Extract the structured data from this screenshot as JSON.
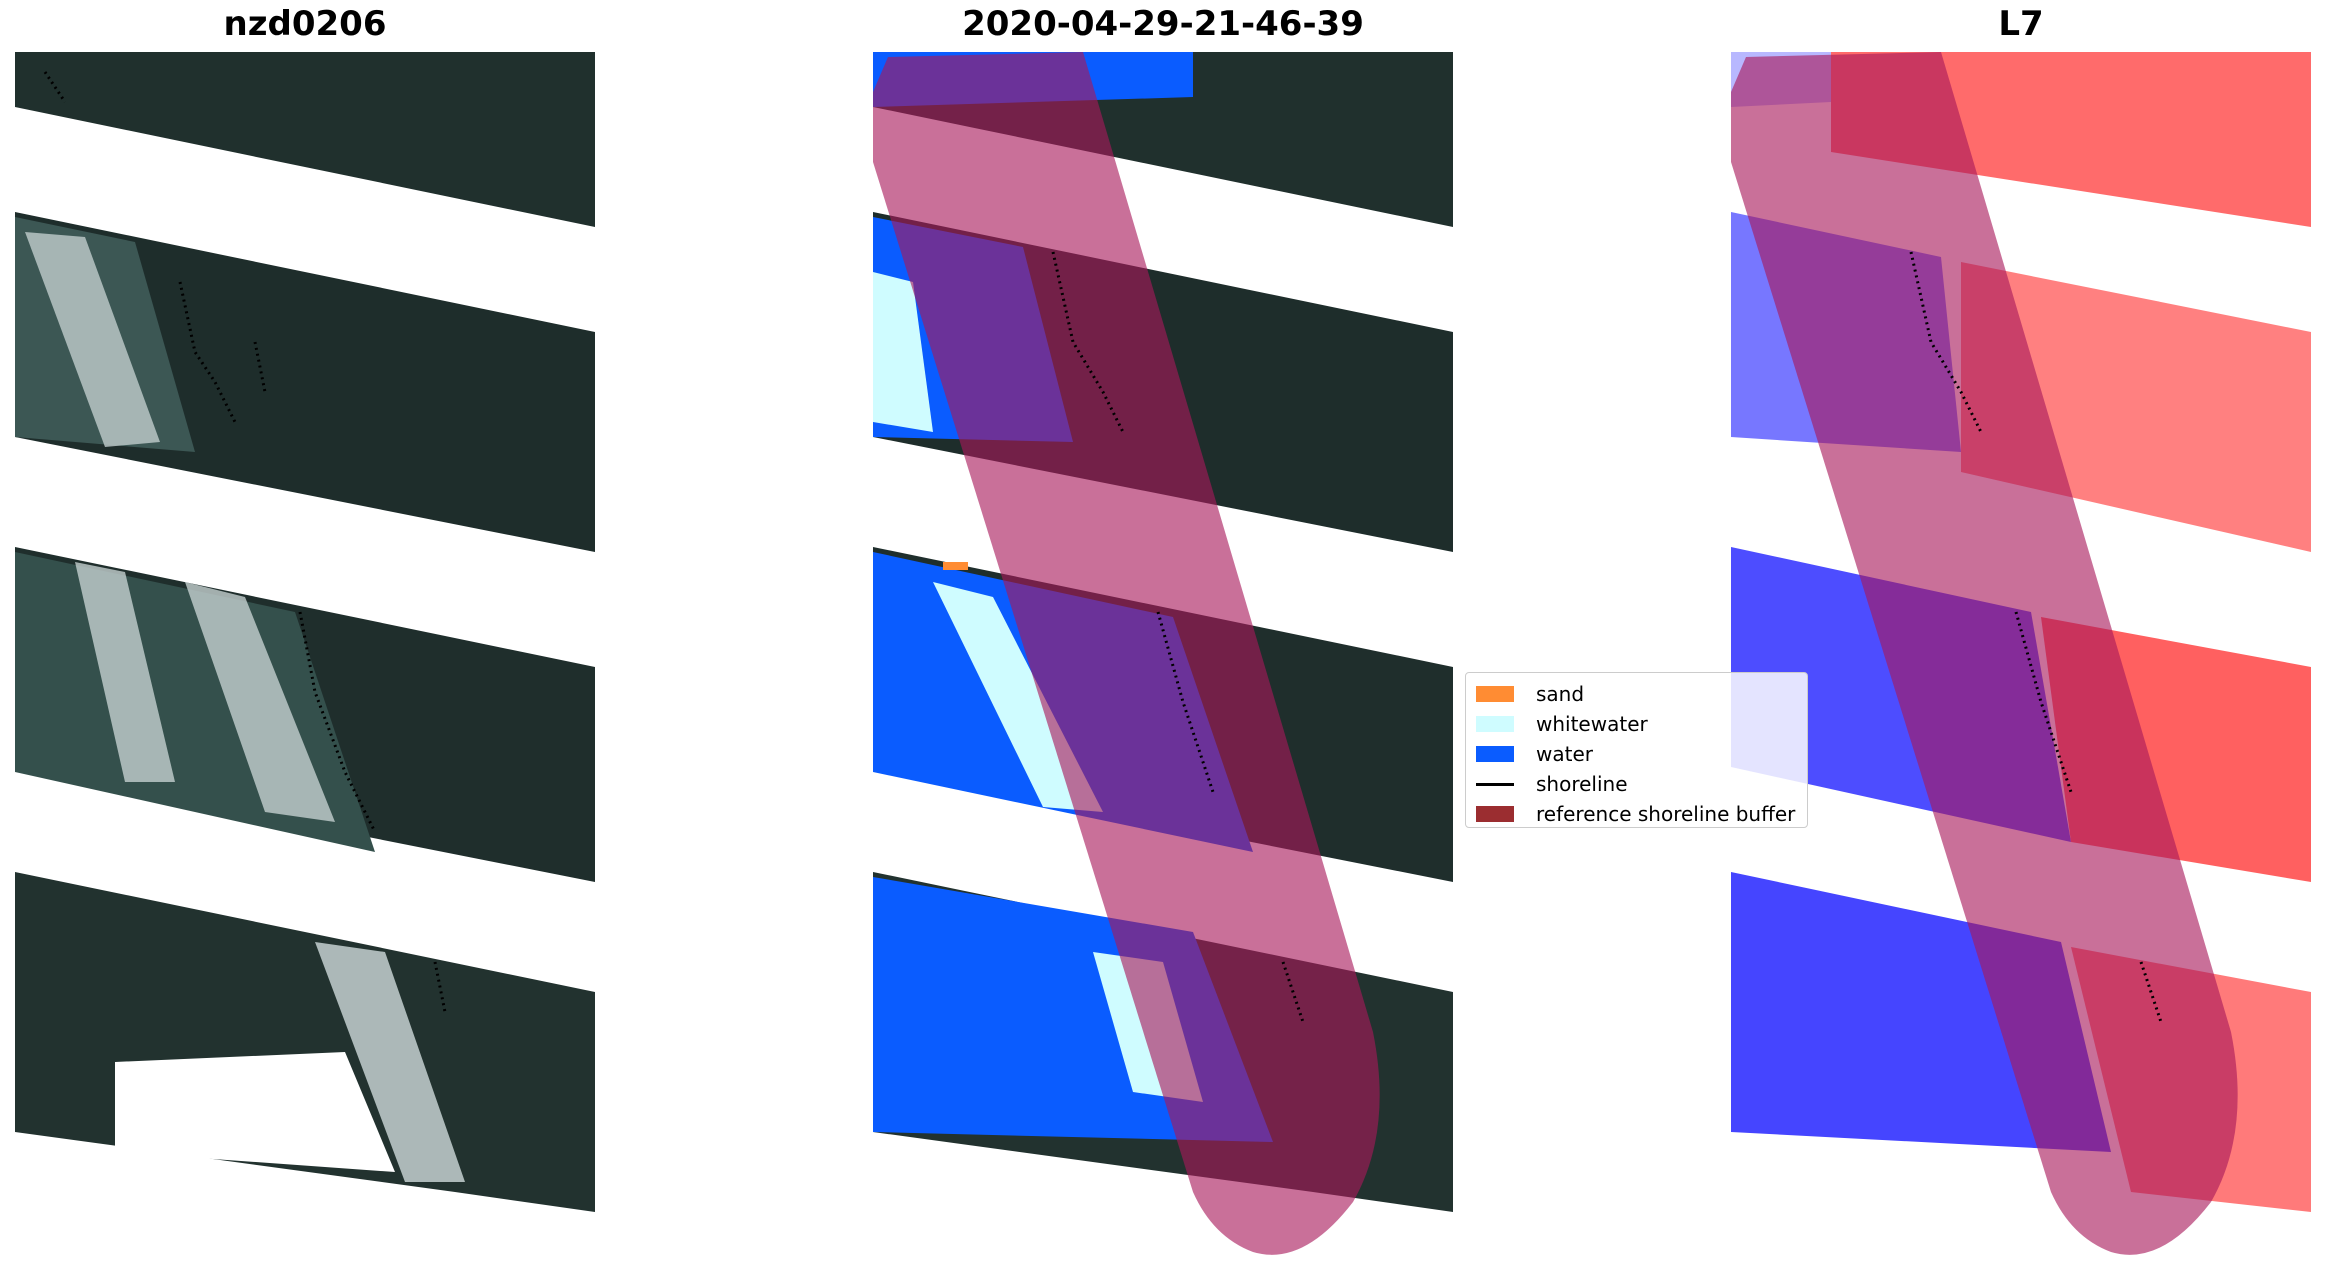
{
  "panels": {
    "rgb": {
      "title": "nzd0206"
    },
    "classified": {
      "title": "2020-04-29-21-46-39"
    },
    "index": {
      "title": "L7"
    }
  },
  "legend": {
    "items": [
      {
        "label": "sand",
        "color": "#ff8c33",
        "kind": "patch"
      },
      {
        "label": "whitewater",
        "color": "#cffcff",
        "kind": "patch"
      },
      {
        "label": "water",
        "color": "#0a5cff",
        "kind": "patch"
      },
      {
        "label": "shoreline",
        "color": "#000000",
        "kind": "line"
      },
      {
        "label": "reference shoreline buffer",
        "color": "#9b2d30",
        "kind": "patch"
      }
    ]
  },
  "colors": {
    "land": "#1f2e2b",
    "surf_water": "#2f4a46",
    "whitewater_rgb": "#c9d6d6",
    "buffer": "#a8195a",
    "index_land": "#ff6b6b",
    "index_water": "#5555ff"
  }
}
